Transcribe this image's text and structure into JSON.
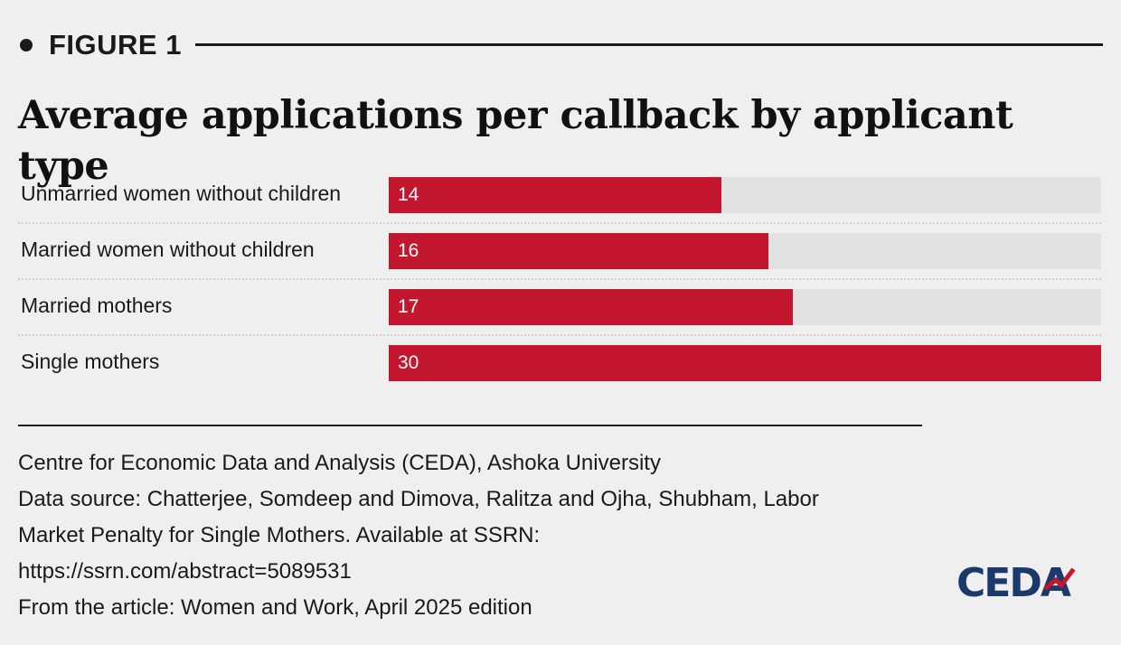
{
  "header": {
    "figure_label": "FIGURE 1"
  },
  "chart_data": {
    "type": "bar",
    "orientation": "horizontal",
    "title": "Average applications per callback by applicant type",
    "categories": [
      "Unmarried women without children",
      "Married women without children",
      "Married mothers",
      "Single mothers"
    ],
    "values": [
      14,
      16,
      17,
      30
    ],
    "xlim": [
      0,
      30
    ],
    "bar_color": "#c3162f",
    "track_color": "#e2e2e2",
    "data_labels": true,
    "grid": false
  },
  "source": {
    "lines": [
      "Centre for Economic Data and Analysis (CEDA), Ashoka University",
      "Data source: Chatterjee, Somdeep and Dimova, Ralitza and Ojha, Shubham, Labor",
      "Market Penalty for Single Mothers. Available at SSRN:",
      "https://ssrn.com/abstract=5089531",
      "From the article: Women and Work, April 2025 edition"
    ]
  },
  "logo": {
    "text": "CEDA",
    "color": "#1b3a6b",
    "accent_color": "#c3162f"
  }
}
